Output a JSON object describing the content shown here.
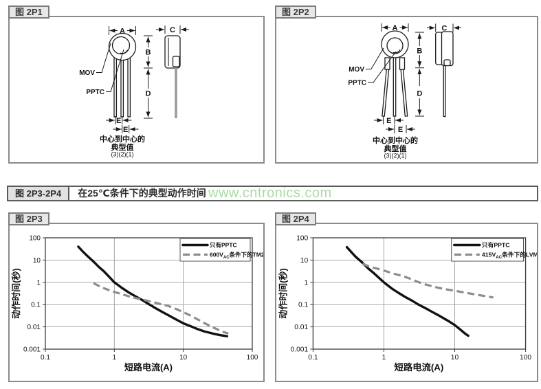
{
  "page": {
    "background": "#ffffff"
  },
  "watermark": {
    "text": "www.cntronics.com",
    "color": "#a9dca4"
  },
  "figures": {
    "p1": {
      "label": "图 2P1",
      "diagram": {
        "mov_label": "MOV",
        "pptc_label": "PPTC",
        "dim_a": "A",
        "dim_b": "B",
        "dim_c": "C",
        "dim_d": "D",
        "dim_e_row1": "E",
        "dim_e_row2": "E",
        "caption_line1": "中心到中心的",
        "caption_line2": "典型值",
        "caption_line3": "(3)(2)(1)"
      }
    },
    "p2": {
      "label": "图 2P2",
      "diagram": {
        "mov_label": "MOV",
        "pptc_label": "PPTC",
        "dim_a": "A",
        "dim_b": "B",
        "dim_c": "C",
        "dim_d": "D",
        "dim_e_row1": "E",
        "dim_e_row2": "E",
        "caption_line1": "中心到中心的",
        "caption_line2": "典型值",
        "caption_line3": "(3)(2)(1)"
      }
    },
    "p3p4_header": {
      "label": "图 2P3-2P4",
      "title": "在25℃条件下的典型动作时间"
    },
    "p3": {
      "label": "图 2P3"
    },
    "p4": {
      "label": "图 2P4"
    }
  },
  "chart_data": [
    {
      "id": "2P3",
      "type": "line",
      "x_scale": "log",
      "y_scale": "log",
      "xlim": [
        0.1,
        100
      ],
      "ylim": [
        0.001,
        100
      ],
      "x_ticks": [
        0.1,
        1,
        10,
        100
      ],
      "x_tick_labels": [
        "0.1",
        "1",
        "10",
        "100"
      ],
      "y_ticks": [
        0.001,
        0.01,
        0.1,
        1,
        10,
        100
      ],
      "y_tick_labels": [
        "0.001",
        "0.01",
        "0.1",
        "1",
        "10",
        "100"
      ],
      "xlabel": "短路电流(A)",
      "ylabel": "动作时间(秒)",
      "grid": true,
      "legend_position": "top-right",
      "series": [
        {
          "name": "只有PPTC",
          "legend_pre": "只有PPTC",
          "legend_sub": "",
          "legend_post": "",
          "line_style": "solid",
          "color": "#111111",
          "points": [
            [
              0.3,
              40
            ],
            [
              0.35,
              24
            ],
            [
              0.4,
              16
            ],
            [
              0.5,
              8.5
            ],
            [
              0.6,
              4.8
            ],
            [
              0.7,
              3.2
            ],
            [
              0.85,
              1.7
            ],
            [
              1,
              1.0
            ],
            [
              1.3,
              0.55
            ],
            [
              1.6,
              0.36
            ],
            [
              2,
              0.24
            ],
            [
              2.5,
              0.165
            ],
            [
              3,
              0.115
            ],
            [
              4,
              0.068
            ],
            [
              5,
              0.046
            ],
            [
              6,
              0.034
            ],
            [
              8,
              0.021
            ],
            [
              10,
              0.0145
            ],
            [
              13,
              0.0105
            ],
            [
              16,
              0.008
            ],
            [
              20,
              0.0063
            ],
            [
              27,
              0.005
            ],
            [
              35,
              0.0042
            ],
            [
              43,
              0.0038
            ]
          ]
        },
        {
          "name": "600VAC条件下的TM2P",
          "legend_pre": "600V",
          "legend_sub": "AC",
          "legend_post": "条件下的TM2P",
          "line_style": "dashed",
          "color": "#8c8c8c",
          "points": [
            [
              0.5,
              0.92
            ],
            [
              0.6,
              0.68
            ],
            [
              0.7,
              0.55
            ],
            [
              0.85,
              0.44
            ],
            [
              1,
              0.37
            ],
            [
              1.3,
              0.29
            ],
            [
              1.6,
              0.24
            ],
            [
              2,
              0.2
            ],
            [
              2.5,
              0.17
            ],
            [
              3,
              0.15
            ],
            [
              4,
              0.12
            ],
            [
              5,
              0.1
            ],
            [
              6,
              0.088
            ],
            [
              8,
              0.062
            ],
            [
              10,
              0.046
            ],
            [
              13,
              0.031
            ],
            [
              16,
              0.022
            ],
            [
              20,
              0.015
            ],
            [
              27,
              0.0095
            ],
            [
              35,
              0.0065
            ],
            [
              45,
              0.005
            ]
          ]
        }
      ]
    },
    {
      "id": "2P4",
      "type": "line",
      "x_scale": "log",
      "y_scale": "log",
      "xlim": [
        0.1,
        100
      ],
      "ylim": [
        0.001,
        100
      ],
      "x_ticks": [
        0.1,
        1,
        10,
        100
      ],
      "x_tick_labels": [
        "0.1",
        "1",
        "10",
        "100"
      ],
      "y_ticks": [
        0.001,
        0.01,
        0.1,
        1,
        10,
        100
      ],
      "y_tick_labels": [
        "0.001",
        "0.01",
        "0.1",
        "1",
        "10",
        "100"
      ],
      "xlabel": "短路电流(A)",
      "ylabel": "动作时间(秒)",
      "grid": true,
      "legend_position": "top-right",
      "series": [
        {
          "name": "只有PPTC",
          "legend_pre": "只有PPTC",
          "legend_sub": "",
          "legend_post": "",
          "line_style": "solid",
          "color": "#111111",
          "points": [
            [
              0.3,
              38
            ],
            [
              0.35,
              22
            ],
            [
              0.4,
              14
            ],
            [
              0.5,
              7.5
            ],
            [
              0.6,
              4.2
            ],
            [
              0.7,
              2.8
            ],
            [
              0.85,
              1.6
            ],
            [
              1,
              1.0
            ],
            [
              1.3,
              0.52
            ],
            [
              1.6,
              0.34
            ],
            [
              2,
              0.22
            ],
            [
              2.5,
              0.15
            ],
            [
              3,
              0.105
            ],
            [
              4,
              0.065
            ],
            [
              5,
              0.044
            ],
            [
              6,
              0.032
            ],
            [
              8,
              0.019
            ],
            [
              10,
              0.012
            ],
            [
              12,
              0.0075
            ],
            [
              14,
              0.005
            ],
            [
              15.5,
              0.004
            ]
          ]
        },
        {
          "name": "415VAC条件下的LVM2P",
          "legend_pre": "415V",
          "legend_sub": "AC",
          "legend_post": "条件下的LVM2P",
          "line_style": "dashed",
          "color": "#8c8c8c",
          "points": [
            [
              0.5,
              6.8
            ],
            [
              0.6,
              5.4
            ],
            [
              0.7,
              4.6
            ],
            [
              0.85,
              3.9
            ],
            [
              1,
              3.4
            ],
            [
              1.3,
              2.6
            ],
            [
              1.6,
              2.15
            ],
            [
              2,
              1.75
            ],
            [
              2.5,
              1.35
            ],
            [
              3,
              1.05
            ],
            [
              4,
              0.78
            ],
            [
              5,
              0.65
            ],
            [
              6,
              0.56
            ],
            [
              8,
              0.47
            ],
            [
              10,
              0.42
            ],
            [
              13,
              0.36
            ],
            [
              16,
              0.32
            ],
            [
              20,
              0.28
            ],
            [
              27,
              0.24
            ],
            [
              35,
              0.21
            ]
          ]
        }
      ]
    }
  ]
}
